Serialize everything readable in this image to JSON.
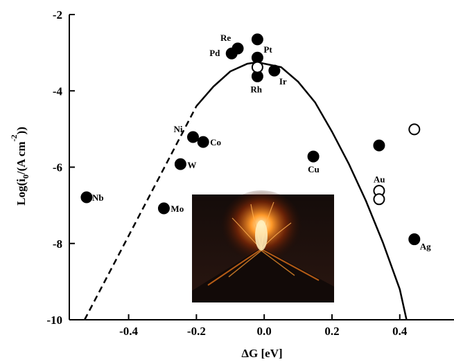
{
  "chart_data": {
    "type": "scatter",
    "ylabel": [
      "Log(i",
      "0",
      "/(A cm",
      "-2",
      "))"
    ],
    "xlabel": "ΔG [eV]",
    "xlim": [
      -0.575,
      0.56
    ],
    "ylim": [
      -10,
      -2
    ],
    "xticks": [
      -0.4,
      -0.2,
      {
        "value": 0,
        "label": "0.0"
      },
      0.2,
      0.4
    ],
    "yticks": [
      -2,
      -4,
      -6,
      -8,
      -10
    ],
    "series": [
      {
        "marker": "filled",
        "color": "#000000",
        "x": [
          -0.524,
          -0.296,
          -0.247,
          -0.21,
          -0.18,
          -0.078,
          -0.096,
          -0.02,
          -0.02,
          -0.02,
          0.03,
          0.145,
          0.339,
          0.443
        ],
        "values": [
          -6.79,
          -7.08,
          -5.92,
          -5.21,
          -5.34,
          -2.89,
          -3.02,
          -2.65,
          -3.13,
          -3.62,
          -3.47,
          -5.72,
          -5.43,
          -7.89
        ],
        "labels": [
          "Nb",
          "Mo",
          "W",
          "Ni",
          "Co",
          "Re",
          "Pd",
          "Pt",
          null,
          "Rh",
          "Ir",
          "Cu",
          null,
          "Ag"
        ]
      },
      {
        "marker": "open",
        "color": "#000000",
        "x": [
          -0.02,
          0.443,
          0.339,
          0.339
        ],
        "values": [
          -3.38,
          -5.01,
          -6.62,
          -6.84
        ],
        "labels": [
          null,
          null,
          "Au",
          null
        ]
      }
    ],
    "curves": [
      {
        "style": "dashed",
        "color": "#000000",
        "x": [
          -0.53,
          -0.4,
          -0.2
        ],
        "values": [
          -10,
          -7.8,
          -4.4
        ]
      },
      {
        "style": "solid",
        "color": "#000000",
        "x": [
          -0.2,
          -0.15,
          -0.1,
          -0.05,
          -0.02,
          0.05,
          0.1,
          0.15,
          0.2,
          0.25,
          0.3,
          0.35,
          0.4,
          0.42
        ],
        "values": [
          -4.4,
          -3.89,
          -3.49,
          -3.29,
          -3.25,
          -3.38,
          -3.76,
          -4.3,
          -5.07,
          -5.92,
          -6.88,
          -7.97,
          -9.2,
          -10
        ]
      }
    ]
  }
}
